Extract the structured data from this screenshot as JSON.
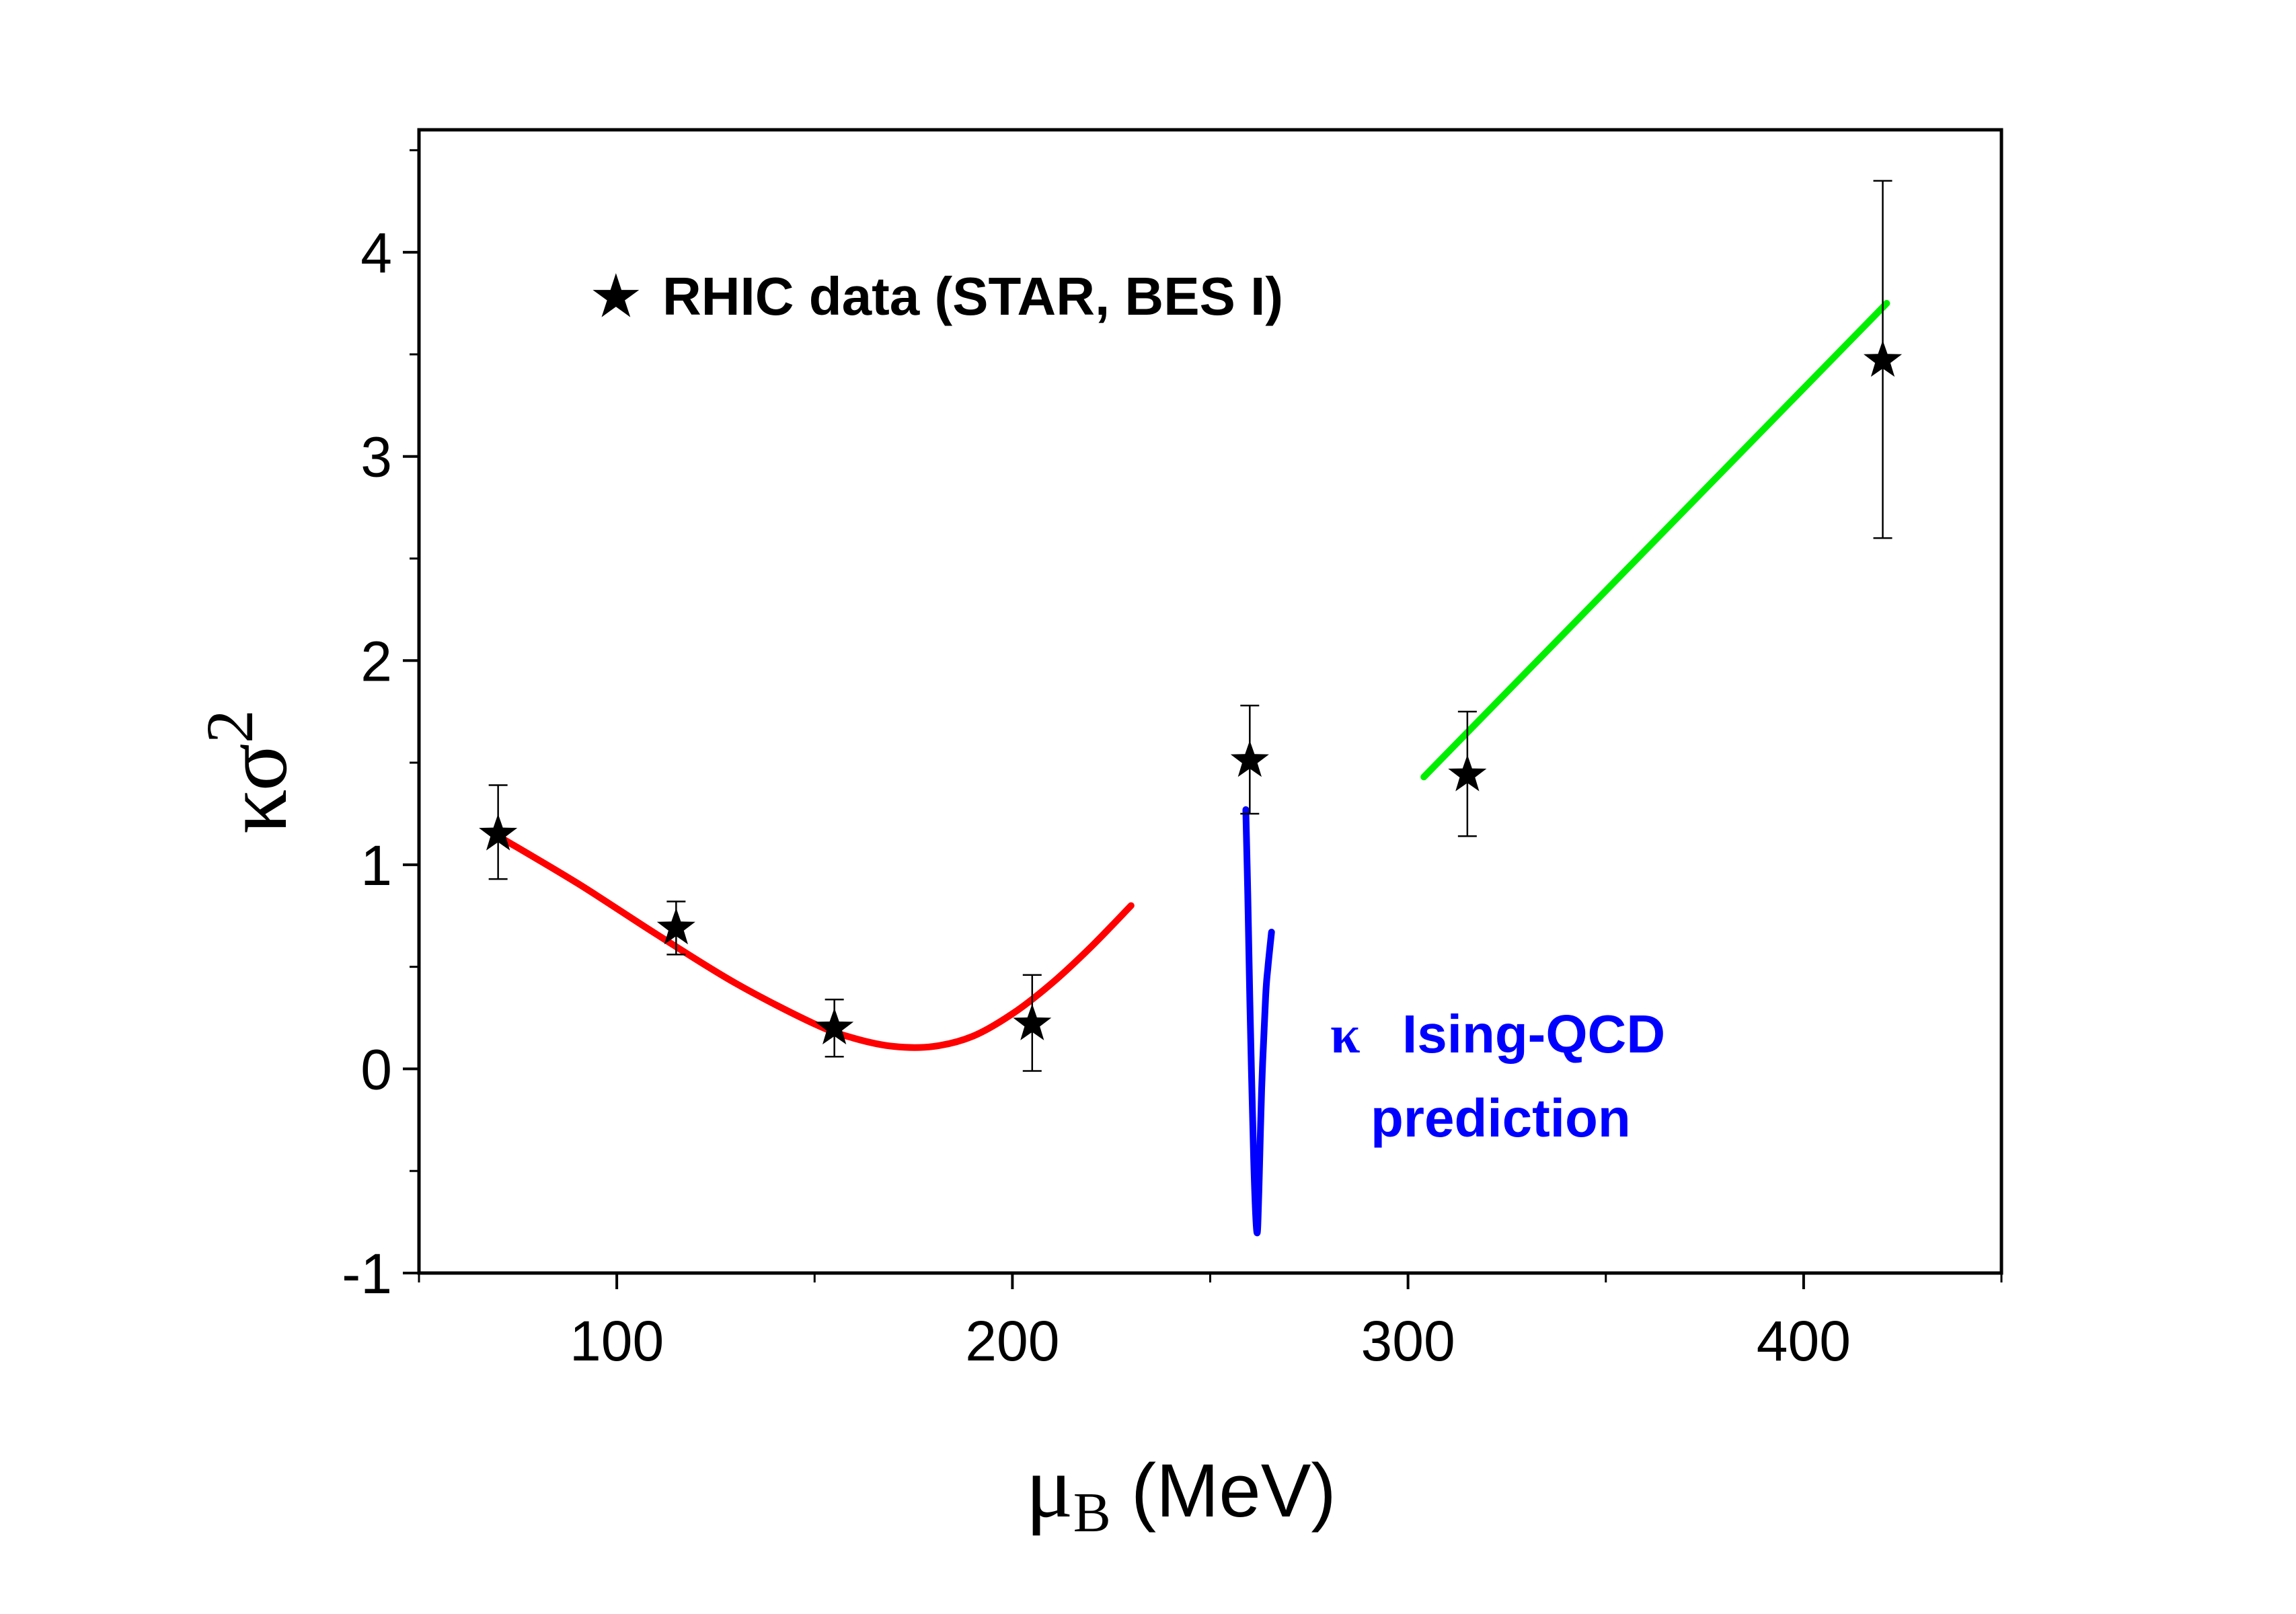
{
  "chart_data": {
    "type": "scatter",
    "title": "",
    "xlabel": {
      "symbol": "μ",
      "subscript": "B",
      "units": "(MeV)"
    },
    "ylabel": {
      "symbol": "κσ",
      "superscript": "2"
    },
    "xlim": [
      50,
      450
    ],
    "ylim": [
      -1,
      4.6
    ],
    "xticks": [
      100,
      200,
      300,
      400
    ],
    "xtick_labels": [
      "100",
      "200",
      "300",
      "400"
    ],
    "x_minor_ticks": [
      50,
      150,
      250,
      350,
      450
    ],
    "yticks": [
      -1,
      0,
      1,
      2,
      3,
      4
    ],
    "ytick_labels": [
      "-1",
      "0",
      "1",
      "2",
      "3",
      "4"
    ],
    "y_minor_ticks": [
      -0.5,
      0.5,
      1.5,
      2.5,
      3.5,
      4.5
    ],
    "grid": false,
    "series": [
      {
        "name": "RHIC data (STAR, BES I)",
        "kind": "points",
        "marker": "★",
        "color": "#000000",
        "points": [
          {
            "x": 70,
            "y": 1.15,
            "err_low": 0.93,
            "err_high": 1.39
          },
          {
            "x": 115,
            "y": 0.69,
            "err_low": 0.56,
            "err_high": 0.82
          },
          {
            "x": 155,
            "y": 0.2,
            "err_low": 0.06,
            "err_high": 0.34
          },
          {
            "x": 205,
            "y": 0.22,
            "err_low": -0.01,
            "err_high": 0.46
          },
          {
            "x": 260,
            "y": 1.51,
            "err_low": 1.25,
            "err_high": 1.78
          },
          {
            "x": 315,
            "y": 1.44,
            "err_low": 1.14,
            "err_high": 1.75
          },
          {
            "x": 420,
            "y": 3.47,
            "err_low": 2.6,
            "err_high": 4.35
          }
        ]
      },
      {
        "name": "red curve",
        "kind": "line",
        "color": "#ff0000",
        "x": [
          70,
          90,
          110,
          130,
          150,
          160,
          170,
          180,
          190,
          200,
          210,
          220,
          230
        ],
        "y": [
          1.14,
          0.91,
          0.66,
          0.42,
          0.22,
          0.15,
          0.11,
          0.11,
          0.16,
          0.27,
          0.42,
          0.6,
          0.8
        ]
      },
      {
        "name": "κ Ising-QCD prediction",
        "kind": "line",
        "color": "#0000ff",
        "x": [
          259,
          259.5,
          260,
          261,
          261.8,
          262.3,
          263,
          264,
          264.6,
          265.5
        ],
        "y": [
          1.27,
          0.85,
          0.35,
          -0.45,
          -0.8,
          -0.6,
          -0.1,
          0.35,
          0.5,
          0.67
        ]
      },
      {
        "name": "green line",
        "kind": "line",
        "color": "#00ee00",
        "x": [
          304,
          421
        ],
        "y": [
          1.43,
          3.75
        ]
      }
    ],
    "annotations": [
      {
        "marker": "★",
        "text": "RHIC data (STAR, BES I)",
        "color": "#000000"
      },
      {
        "marker": "κ",
        "text": "Ising-QCD",
        "text_line2": "prediction",
        "color": "#0000ff"
      }
    ]
  }
}
